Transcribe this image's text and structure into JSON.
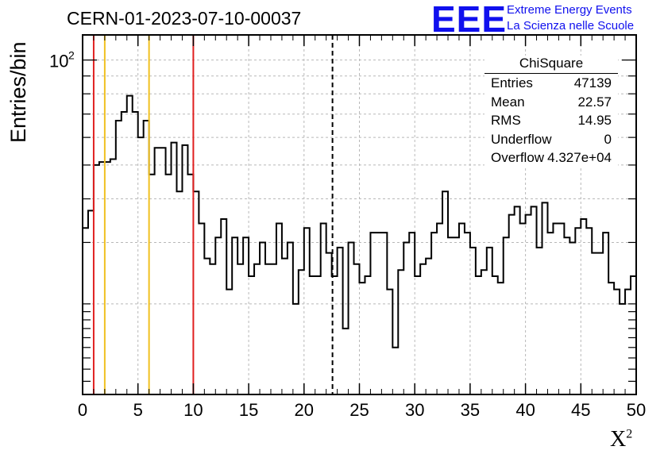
{
  "header": {
    "title": "CERN-01-2023-07-10-00037",
    "logo_text": "EEE",
    "logo_line1": "Extreme Energy Events",
    "logo_line2": "La Scienza nelle Scuole"
  },
  "stats_box": {
    "title": "ChiSquare",
    "rows": [
      {
        "label": "Entries",
        "value": "47139"
      },
      {
        "label": "Mean",
        "value": "22.57"
      },
      {
        "label": "RMS",
        "value": "14.95"
      },
      {
        "label": "Underflow",
        "value": "0"
      },
      {
        "label": "Overflow",
        "value": "4.327e+04"
      }
    ]
  },
  "chart_data": {
    "type": "histogram",
    "xlabel": "X",
    "xlabel_superscript": "2",
    "ylabel": "Entries/bin",
    "xlim": [
      0,
      50
    ],
    "ylim": [
      11,
      118
    ],
    "y_scale": "log",
    "grid": true,
    "x_ticks": [
      0,
      5,
      10,
      15,
      20,
      25,
      30,
      35,
      40,
      45,
      50
    ],
    "x_tick_labels": [
      "0",
      "5",
      "10",
      "15",
      "20",
      "25",
      "30",
      "35",
      "40",
      "45",
      "50"
    ],
    "y_ticks": [
      100
    ],
    "y_tick_labels": [
      "10^2"
    ],
    "bin_width": 0.5,
    "bin_start": 0,
    "values": [
      33,
      37,
      50,
      51,
      51,
      52,
      67,
      71,
      79,
      71,
      60,
      67,
      47,
      56,
      56,
      47,
      58,
      42,
      57,
      47,
      42,
      34,
      27,
      26,
      31,
      35,
      22,
      31,
      26,
      31,
      24,
      26,
      30,
      26,
      26,
      34,
      27,
      30,
      20,
      25,
      33,
      24,
      24,
      34,
      28,
      24,
      29,
      17,
      30,
      26,
      23,
      24,
      32,
      32,
      32,
      22,
      15,
      25,
      30,
      32,
      24,
      26,
      27,
      32,
      34,
      42,
      31,
      31,
      34,
      32,
      29,
      24,
      25,
      29,
      24,
      23,
      31,
      36,
      38,
      34,
      36,
      38,
      29,
      39,
      32,
      34,
      34,
      31,
      30,
      33,
      35,
      33,
      28,
      28,
      32,
      23,
      22,
      20,
      22,
      24
    ],
    "markers": [
      {
        "x": 1,
        "color": "#e02020",
        "style": "solid"
      },
      {
        "x": 2,
        "color": "#f0c020",
        "style": "solid"
      },
      {
        "x": 6,
        "color": "#f0c020",
        "style": "solid"
      },
      {
        "x": 10,
        "color": "#e02020",
        "style": "solid"
      },
      {
        "x": 22.57,
        "color": "#000000",
        "style": "dashed"
      }
    ]
  }
}
